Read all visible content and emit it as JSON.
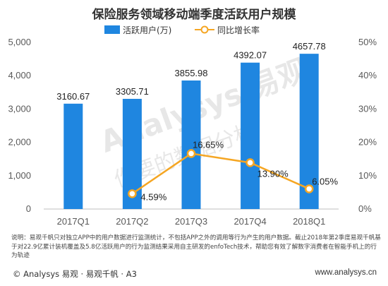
{
  "title": "保险服务领域移动端季度活跃用户规模",
  "watermark": {
    "main": "Analysys 易观",
    "sub": "你要的数据分析"
  },
  "legend": {
    "bar": "活跃用户(万)",
    "line": "同比增长率"
  },
  "colors": {
    "bar": "#1f86e0",
    "line": "#f5a623",
    "marker_fill": "#ffffff"
  },
  "chart_data": {
    "type": "bar",
    "categories": [
      "2017Q1",
      "2017Q2",
      "2017Q3",
      "2017Q4",
      "2018Q1"
    ],
    "series": [
      {
        "name": "活跃用户(万)",
        "type": "bar",
        "axis": "left",
        "values": [
          3160.67,
          3305.71,
          3855.98,
          4392.07,
          4657.78
        ],
        "labels": [
          "3160.67",
          "3305.71",
          "3855.98",
          "4392.07",
          "4657.78"
        ]
      },
      {
        "name": "同比增长率",
        "type": "line",
        "axis": "right",
        "values": [
          null,
          4.59,
          16.65,
          13.9,
          6.05
        ],
        "labels": [
          "",
          "4.59%",
          "16.65%",
          "13.90%",
          "6.05%"
        ]
      }
    ],
    "left_axis": {
      "ylim": [
        0,
        5000
      ],
      "ticks": [
        "0",
        "1,000",
        "2,000",
        "3,000",
        "4,000",
        "5,000"
      ]
    },
    "right_axis": {
      "ylim": [
        0,
        50
      ],
      "ticks": [
        "0%",
        "10%",
        "20%",
        "30%",
        "40%",
        "50%"
      ]
    },
    "legend_position": "top-center",
    "grid": false
  },
  "note": "说明：易观千帆只对独立APP中的用户数据进行监测统计，不包括APP之外的调用等行为产生的用户数据。截止2018年第2季度易观千帆基于对22.9亿累计装机覆盖及5.8亿活跃用户的行为监测结果采用自主研发的enfoTech技术，帮助您有效了解数字消费者在智能手机上的行为轨迹",
  "footer": {
    "left": "© Analysys 易观 · 易观千帆 · A3",
    "right": "www.analysys.cn"
  }
}
